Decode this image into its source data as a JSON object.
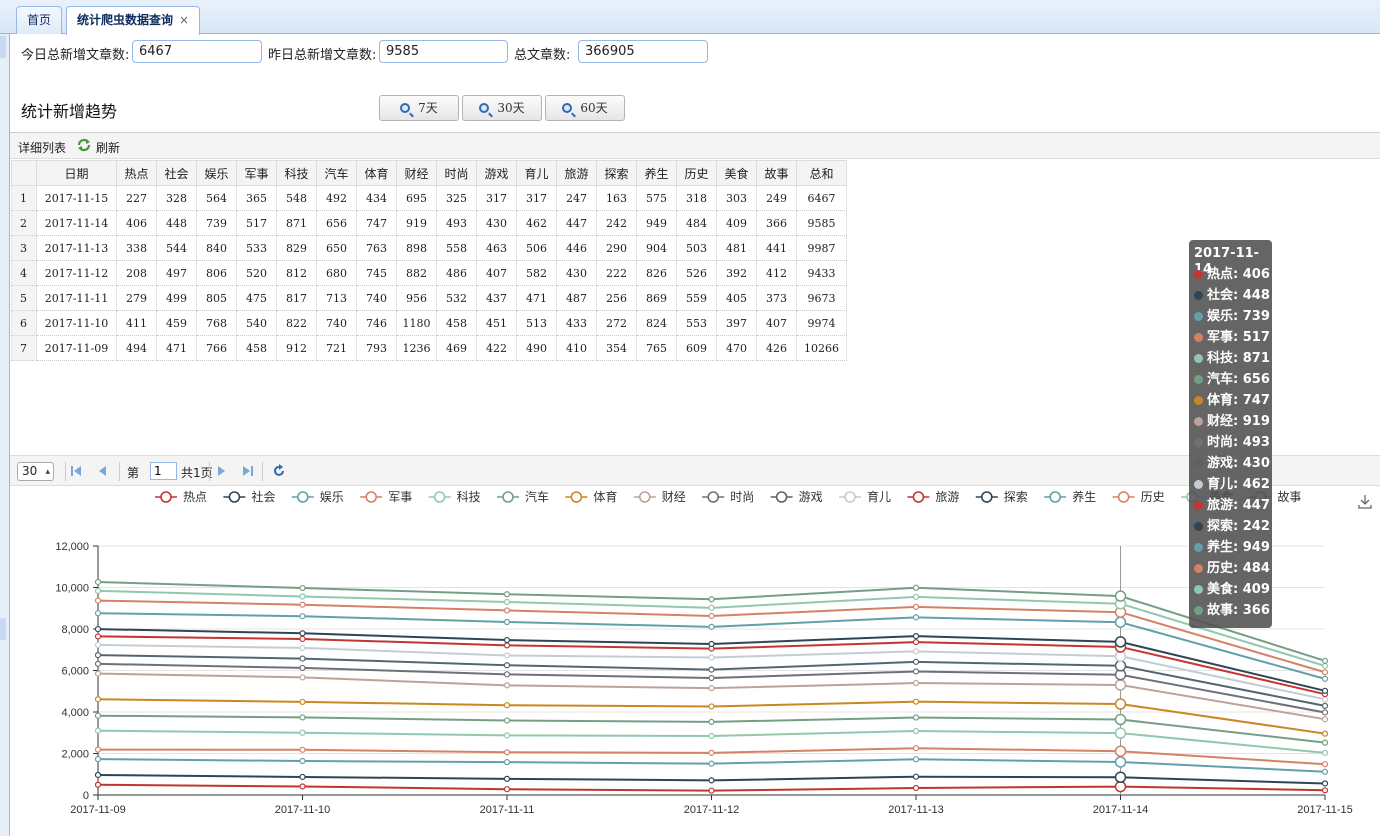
{
  "tabs": [
    {
      "label": "首页",
      "active": false
    },
    {
      "label": "统计爬虫数据查询",
      "active": true
    }
  ],
  "tab_close_glyph": "×",
  "form": {
    "today_label": "今日总新增文章数:",
    "today_value": "6467",
    "yesterday_label": "昨日总新增文章数:",
    "yesterday_value": "9585",
    "total_label": "总文章数:",
    "total_value": "366905"
  },
  "trend": {
    "title": "统计新增趋势",
    "buttons": [
      "7天",
      "30天",
      "60天"
    ]
  },
  "grid": {
    "toolbar_title": "详细列表",
    "refresh_label": "刷新",
    "refresh_icon": "refresh-icon",
    "columns": [
      "日期",
      "热点",
      "社会",
      "娱乐",
      "军事",
      "科技",
      "汽车",
      "体育",
      "财经",
      "时尚",
      "游戏",
      "育儿",
      "旅游",
      "探索",
      "养生",
      "历史",
      "美食",
      "故事",
      "总和"
    ],
    "rows": [
      [
        "2017-11-15",
        "227",
        "328",
        "564",
        "365",
        "548",
        "492",
        "434",
        "695",
        "325",
        "317",
        "317",
        "247",
        "163",
        "575",
        "318",
        "303",
        "249",
        "6467"
      ],
      [
        "2017-11-14",
        "406",
        "448",
        "739",
        "517",
        "871",
        "656",
        "747",
        "919",
        "493",
        "430",
        "462",
        "447",
        "242",
        "949",
        "484",
        "409",
        "366",
        "9585"
      ],
      [
        "2017-11-13",
        "338",
        "544",
        "840",
        "533",
        "829",
        "650",
        "763",
        "898",
        "558",
        "463",
        "506",
        "446",
        "290",
        "904",
        "503",
        "481",
        "441",
        "9987"
      ],
      [
        "2017-11-12",
        "208",
        "497",
        "806",
        "520",
        "812",
        "680",
        "745",
        "882",
        "486",
        "407",
        "582",
        "430",
        "222",
        "826",
        "526",
        "392",
        "412",
        "9433"
      ],
      [
        "2017-11-11",
        "279",
        "499",
        "805",
        "475",
        "817",
        "713",
        "740",
        "956",
        "532",
        "437",
        "471",
        "487",
        "256",
        "869",
        "559",
        "405",
        "373",
        "9673"
      ],
      [
        "2017-11-10",
        "411",
        "459",
        "768",
        "540",
        "822",
        "740",
        "746",
        "1180",
        "458",
        "451",
        "513",
        "433",
        "272",
        "824",
        "553",
        "397",
        "407",
        "9974"
      ],
      [
        "2017-11-09",
        "494",
        "471",
        "766",
        "458",
        "912",
        "721",
        "793",
        "1236",
        "469",
        "422",
        "490",
        "410",
        "354",
        "765",
        "609",
        "470",
        "426",
        "10266"
      ]
    ]
  },
  "pager": {
    "page_size": "30",
    "page_prefix": "第",
    "page_number": "1",
    "page_total": "共1页"
  },
  "chart_data": {
    "type": "area",
    "stacked": true,
    "x": [
      "2017-11-09",
      "2017-11-10",
      "2017-11-11",
      "2017-11-12",
      "2017-11-13",
      "2017-11-14",
      "2017-11-15"
    ],
    "ylim": [
      0,
      12000
    ],
    "yticks": [
      "0",
      "2,000",
      "4,000",
      "6,000",
      "8,000",
      "10,000",
      "12,000"
    ],
    "grid": true,
    "legend_position": "top",
    "series": [
      {
        "name": "热点",
        "color": "#c23531",
        "values": [
          494,
          411,
          279,
          208,
          338,
          406,
          227
        ]
      },
      {
        "name": "社会",
        "color": "#2f4554",
        "values": [
          471,
          459,
          499,
          497,
          544,
          448,
          328
        ]
      },
      {
        "name": "娱乐",
        "color": "#61a0a8",
        "values": [
          766,
          768,
          805,
          806,
          840,
          739,
          564
        ]
      },
      {
        "name": "军事",
        "color": "#d48265",
        "values": [
          458,
          540,
          475,
          520,
          533,
          517,
          365
        ]
      },
      {
        "name": "科技",
        "color": "#91c7ae",
        "values": [
          912,
          822,
          817,
          812,
          829,
          871,
          548
        ]
      },
      {
        "name": "汽车",
        "color": "#749f83",
        "values": [
          721,
          740,
          713,
          680,
          650,
          656,
          492
        ]
      },
      {
        "name": "体育",
        "color": "#ca8622",
        "values": [
          793,
          746,
          740,
          745,
          763,
          747,
          434
        ]
      },
      {
        "name": "财经",
        "color": "#bda29a",
        "values": [
          1236,
          1180,
          956,
          882,
          898,
          919,
          695
        ]
      },
      {
        "name": "时尚",
        "color": "#6e7074",
        "values": [
          469,
          458,
          532,
          486,
          558,
          493,
          325
        ]
      },
      {
        "name": "游戏",
        "color": "#546570",
        "values": [
          422,
          451,
          437,
          407,
          463,
          430,
          317
        ]
      },
      {
        "name": "育儿",
        "color": "#c4ccd3",
        "values": [
          490,
          513,
          471,
          582,
          506,
          462,
          317
        ]
      },
      {
        "name": "旅游",
        "color": "#c23531",
        "values": [
          410,
          433,
          487,
          430,
          446,
          447,
          247
        ]
      },
      {
        "name": "探索",
        "color": "#2f4554",
        "values": [
          354,
          272,
          256,
          222,
          290,
          242,
          163
        ]
      },
      {
        "name": "养生",
        "color": "#61a0a8",
        "values": [
          765,
          824,
          869,
          826,
          904,
          949,
          575
        ]
      },
      {
        "name": "历史",
        "color": "#d48265",
        "values": [
          609,
          553,
          559,
          526,
          503,
          484,
          318
        ]
      },
      {
        "name": "美食",
        "color": "#91c7ae",
        "values": [
          470,
          397,
          405,
          392,
          481,
          409,
          303
        ]
      },
      {
        "name": "故事",
        "color": "#749f83",
        "values": [
          426,
          407,
          373,
          412,
          441,
          366,
          249
        ]
      }
    ],
    "tooltip": {
      "date": "2017-11-14",
      "rows": [
        "热点: 406",
        "社会: 448",
        "娱乐: 739",
        "军事: 517",
        "科技: 871",
        "汽车: 656",
        "体育: 747",
        "财经: 919",
        "时尚: 493",
        "游戏: 430",
        "育儿: 462",
        "旅游: 447",
        "探索: 242",
        "养生: 949",
        "历史: 484",
        "美食: 409",
        "故事: 366"
      ]
    }
  },
  "icons": {
    "download": "download-icon",
    "search": "search-icon"
  }
}
